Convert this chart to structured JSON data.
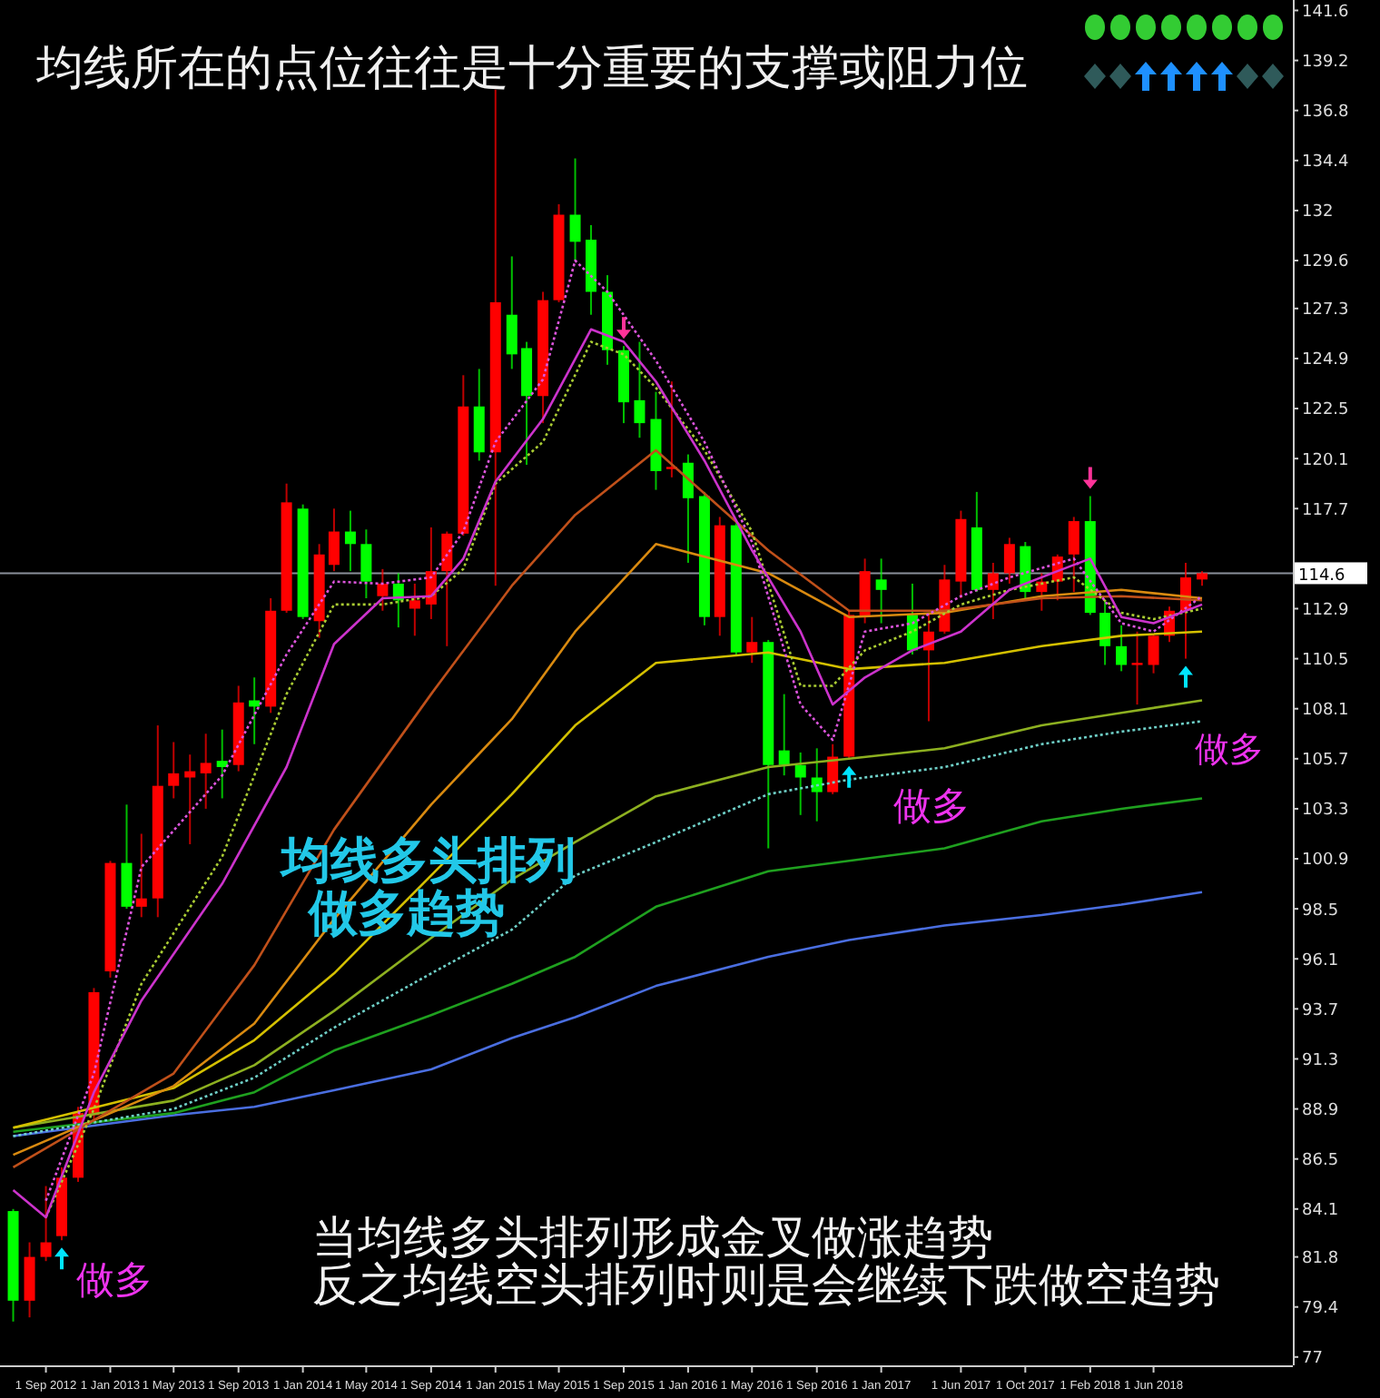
{
  "chart_data": {
    "type": "candlestick",
    "title": "均线所在的点位往往是十分重要的支撑或阻力位",
    "x": [
      "2012-07",
      "2012-08",
      "2012-09",
      "2012-10",
      "2012-11",
      "2012-12",
      "2013-01",
      "2013-02",
      "2013-03",
      "2013-04",
      "2013-05",
      "2013-06",
      "2013-07",
      "2013-08",
      "2013-09",
      "2013-10",
      "2013-11",
      "2013-12",
      "2014-01",
      "2014-02",
      "2014-03",
      "2014-04",
      "2014-05",
      "2014-06",
      "2014-07",
      "2014-08",
      "2014-09",
      "2014-10",
      "2014-11",
      "2014-12",
      "2015-01",
      "2015-02",
      "2015-03",
      "2015-04",
      "2015-05",
      "2015-06",
      "2015-07",
      "2015-08",
      "2015-09",
      "2015-10",
      "2015-11",
      "2015-12",
      "2016-01",
      "2016-02",
      "2016-03",
      "2016-04",
      "2016-05",
      "2016-06",
      "2016-07",
      "2016-08",
      "2016-09",
      "2016-10",
      "2016-11",
      "2016-12",
      "2017-01",
      "2017-03",
      "2017-04",
      "2017-05",
      "2017-06",
      "2017-07",
      "2017-08",
      "2017-09",
      "2017-10",
      "2017-11",
      "2017-12",
      "2018-01",
      "2018-02",
      "2018-03",
      "2018-04",
      "2018-05",
      "2018-06",
      "2018-07",
      "2018-08",
      "2018-09"
    ],
    "ohlc": [
      [
        84.0,
        84.1,
        78.7,
        79.7
      ],
      [
        79.7,
        82.5,
        78.9,
        81.8
      ],
      [
        81.8,
        85.2,
        81.6,
        82.5
      ],
      [
        82.8,
        86.1,
        82.6,
        85.6
      ],
      [
        85.6,
        89.0,
        85.4,
        88.7
      ],
      [
        88.6,
        94.7,
        88.3,
        94.5
      ],
      [
        95.5,
        100.8,
        95.2,
        100.7
      ],
      [
        100.7,
        103.5,
        98.5,
        98.6
      ],
      [
        98.6,
        102.1,
        98.1,
        99.0
      ],
      [
        99.0,
        107.3,
        98.1,
        104.4
      ],
      [
        104.4,
        106.5,
        103.8,
        105.0
      ],
      [
        104.8,
        105.9,
        101.6,
        105.1
      ],
      [
        105.0,
        106.9,
        103.3,
        105.5
      ],
      [
        105.6,
        107.1,
        103.8,
        105.3
      ],
      [
        105.4,
        109.2,
        105.1,
        108.4
      ],
      [
        108.5,
        109.6,
        106.4,
        108.2
      ],
      [
        108.2,
        113.4,
        107.9,
        112.8
      ],
      [
        112.8,
        118.9,
        112.7,
        118.0
      ],
      [
        117.7,
        117.9,
        112.4,
        112.5
      ],
      [
        112.3,
        116.0,
        111.5,
        115.5
      ],
      [
        115.0,
        117.7,
        114.7,
        116.6
      ],
      [
        116.6,
        117.6,
        114.7,
        116.0
      ],
      [
        116.0,
        116.7,
        113.4,
        114.2
      ],
      [
        113.5,
        114.8,
        112.8,
        114.1
      ],
      [
        114.1,
        114.6,
        112.0,
        113.3
      ],
      [
        112.9,
        114.1,
        111.6,
        113.3
      ],
      [
        113.1,
        116.8,
        112.4,
        114.7
      ],
      [
        114.7,
        116.6,
        111.1,
        116.5
      ],
      [
        116.5,
        124.1,
        116.4,
        122.6
      ],
      [
        122.6,
        124.4,
        120.0,
        120.4
      ],
      [
        120.4,
        137.8,
        114.0,
        127.6
      ],
      [
        127.0,
        129.8,
        124.4,
        125.1
      ],
      [
        125.4,
        125.7,
        119.8,
        123.1
      ],
      [
        123.1,
        128.1,
        121.8,
        127.7
      ],
      [
        127.7,
        132.3,
        127.6,
        131.8
      ],
      [
        131.8,
        134.5,
        129.6,
        130.5
      ],
      [
        130.6,
        131.3,
        127.0,
        128.1
      ],
      [
        128.1,
        128.9,
        124.6,
        125.3
      ],
      [
        125.3,
        125.5,
        121.8,
        122.8
      ],
      [
        122.9,
        125.7,
        121.1,
        121.8
      ],
      [
        122.0,
        123.3,
        118.6,
        119.5
      ],
      [
        119.6,
        123.8,
        119.2,
        119.7
      ],
      [
        119.9,
        120.3,
        115.1,
        118.2
      ],
      [
        118.3,
        118.5,
        112.1,
        112.5
      ],
      [
        112.5,
        117.3,
        111.6,
        116.9
      ],
      [
        116.9,
        117.0,
        110.7,
        110.8
      ],
      [
        110.8,
        112.5,
        110.3,
        111.3
      ],
      [
        111.3,
        111.4,
        101.4,
        105.4
      ],
      [
        106.1,
        108.8,
        104.9,
        105.4
      ],
      [
        105.4,
        106.0,
        103.0,
        104.8
      ],
      [
        104.8,
        106.2,
        102.7,
        104.1
      ],
      [
        104.1,
        106.4,
        104.0,
        105.8
      ],
      [
        105.8,
        112.8,
        105.7,
        112.6
      ],
      [
        112.5,
        115.3,
        112.2,
        114.7
      ],
      [
        114.3,
        115.3,
        112.2,
        113.8
      ],
      [
        112.6,
        114.1,
        110.7,
        110.9
      ],
      [
        110.9,
        112.7,
        107.5,
        111.8
      ],
      [
        111.8,
        115.0,
        111.7,
        114.3
      ],
      [
        114.2,
        117.6,
        113.4,
        117.2
      ],
      [
        116.8,
        118.5,
        113.7,
        113.8
      ],
      [
        113.8,
        115.1,
        112.4,
        114.6
      ],
      [
        114.6,
        116.3,
        114.1,
        116.0
      ],
      [
        115.9,
        116.1,
        113.3,
        113.7
      ],
      [
        113.7,
        114.6,
        112.8,
        114.2
      ],
      [
        114.2,
        115.5,
        113.3,
        115.4
      ],
      [
        115.5,
        117.3,
        113.7,
        117.1
      ],
      [
        117.1,
        118.3,
        112.6,
        112.7
      ],
      [
        112.7,
        113.3,
        110.2,
        111.1
      ],
      [
        111.1,
        112.1,
        109.9,
        110.2
      ],
      [
        110.2,
        111.8,
        108.3,
        110.3
      ],
      [
        110.2,
        111.7,
        109.8,
        111.6
      ],
      [
        111.6,
        113.0,
        111.3,
        112.8
      ],
      [
        112.8,
        115.1,
        110.5,
        114.4
      ],
      [
        114.3,
        114.7,
        114.0,
        114.6
      ]
    ],
    "colors": [
      "#00ff00",
      "#ff0000",
      "#ff0000",
      "#ff0000",
      "#ff0000",
      "#ff0000",
      "#ff0000",
      "#00ff00",
      "#ff0000",
      "#ff0000",
      "#ff0000",
      "#ff0000",
      "#ff0000",
      "#00ff00",
      "#ff0000",
      "#00ff00",
      "#ff0000",
      "#ff0000",
      "#00ff00",
      "#ff0000",
      "#ff0000",
      "#00ff00",
      "#00ff00",
      "#ff0000",
      "#00ff00",
      "#ff0000",
      "#ff0000",
      "#ff0000",
      "#ff0000",
      "#00ff00",
      "#ff0000",
      "#00ff00",
      "#00ff00",
      "#ff0000",
      "#ff0000",
      "#00ff00",
      "#00ff00",
      "#00ff00",
      "#00ff00",
      "#00ff00",
      "#00ff00",
      "#ff0000",
      "#00ff00",
      "#00ff00",
      "#ff0000",
      "#00ff00",
      "#ff0000",
      "#00ff00",
      "#00ff00",
      "#00ff00",
      "#00ff00",
      "#ff0000",
      "#ff0000",
      "#ff0000",
      "#00ff00",
      "#00ff00",
      "#ff0000",
      "#ff0000",
      "#ff0000",
      "#00ff00",
      "#ff0000",
      "#ff0000",
      "#00ff00",
      "#ff0000",
      "#ff0000",
      "#ff0000",
      "#00ff00",
      "#00ff00",
      "#00ff00",
      "#ff0000",
      "#ff0000",
      "#ff0000",
      "#ff0000",
      "#ff0000"
    ],
    "series": [
      {
        "type": "line",
        "color": "#4a6ee0",
        "line_style": "solid",
        "x": [
          "2012-07",
          "2013-05",
          "2013-10",
          "2014-03",
          "2014-09",
          "2015-02",
          "2015-06",
          "2015-11",
          "2016-06",
          "2016-11",
          "2017-05",
          "2017-11",
          "2018-04",
          "2018-09"
        ],
        "values": [
          87.6,
          88.6,
          89.0,
          89.8,
          90.8,
          92.3,
          93.3,
          94.8,
          96.2,
          97.0,
          97.7,
          98.2,
          98.7,
          99.3
        ]
      },
      {
        "type": "line",
        "color": "#1fa01f",
        "line_style": "solid",
        "x": [
          "2012-07",
          "2013-05",
          "2013-10",
          "2014-03",
          "2014-09",
          "2015-02",
          "2015-06",
          "2015-11",
          "2016-06",
          "2016-11",
          "2017-05",
          "2017-11",
          "2018-04",
          "2018-09"
        ],
        "values": [
          87.8,
          88.7,
          89.7,
          91.7,
          93.4,
          94.9,
          96.2,
          98.6,
          100.3,
          100.8,
          101.4,
          102.7,
          103.3,
          103.8
        ]
      },
      {
        "type": "line",
        "color": "#6fd0c8",
        "line_style": "dotted",
        "x": [
          "2012-07",
          "2013-05",
          "2013-10",
          "2014-03",
          "2014-09",
          "2015-02",
          "2015-06",
          "2015-11",
          "2016-06",
          "2016-11",
          "2017-05",
          "2017-11",
          "2018-04",
          "2018-09"
        ],
        "values": [
          87.6,
          88.9,
          90.4,
          92.8,
          95.4,
          97.5,
          100.1,
          101.7,
          104.0,
          104.7,
          105.3,
          106.4,
          107.0,
          107.5
        ]
      },
      {
        "type": "line",
        "color": "#8db020",
        "line_style": "solid",
        "x": [
          "2012-07",
          "2013-05",
          "2013-10",
          "2014-03",
          "2014-09",
          "2015-02",
          "2015-06",
          "2015-11",
          "2016-06",
          "2016-11",
          "2017-05",
          "2017-11",
          "2018-04",
          "2018-09"
        ],
        "values": [
          88.0,
          89.3,
          91.0,
          93.6,
          97.1,
          99.9,
          101.7,
          103.9,
          105.3,
          105.7,
          106.2,
          107.3,
          107.9,
          108.5
        ]
      },
      {
        "type": "line",
        "color": "#d4c000",
        "line_style": "solid",
        "x": [
          "2012-07",
          "2013-05",
          "2013-10",
          "2014-03",
          "2014-09",
          "2015-02",
          "2015-06",
          "2015-11",
          "2016-06",
          "2016-11",
          "2017-05",
          "2017-11",
          "2018-04",
          "2018-09"
        ],
        "values": [
          88.0,
          89.9,
          92.2,
          95.4,
          100.1,
          104.0,
          107.3,
          110.3,
          110.8,
          110.0,
          110.3,
          111.1,
          111.6,
          111.8
        ]
      },
      {
        "type": "line",
        "color": "#d98a10",
        "line_style": "solid",
        "x": [
          "2012-07",
          "2013-05",
          "2013-10",
          "2014-03",
          "2014-09",
          "2015-02",
          "2015-06",
          "2015-11",
          "2016-06",
          "2016-11",
          "2017-05",
          "2017-11",
          "2018-04",
          "2018-09"
        ],
        "values": [
          86.7,
          90.0,
          93.0,
          98.0,
          103.5,
          107.6,
          111.8,
          116.0,
          114.6,
          112.5,
          112.7,
          113.5,
          113.8,
          113.4
        ]
      },
      {
        "type": "line",
        "color": "#c0501a",
        "line_style": "solid",
        "x": [
          "2012-07",
          "2013-05",
          "2013-10",
          "2014-03",
          "2014-09",
          "2015-02",
          "2015-06",
          "2015-11",
          "2016-06",
          "2016-11",
          "2017-05",
          "2017-11",
          "2018-04",
          "2018-09"
        ],
        "values": [
          86.1,
          90.6,
          95.8,
          102.3,
          108.8,
          114.0,
          117.4,
          120.5,
          115.7,
          112.8,
          112.8,
          113.4,
          113.5,
          113.3
        ]
      },
      {
        "type": "line",
        "color": "#aacc33",
        "line_style": "dotted",
        "x": [
          "2012-09",
          "2012-12",
          "2013-03",
          "2013-08",
          "2013-12",
          "2014-03",
          "2014-06",
          "2014-09",
          "2014-11",
          "2015-01",
          "2015-04",
          "2015-07",
          "2015-09",
          "2015-11",
          "2016-02",
          "2016-05",
          "2016-08",
          "2016-10",
          "2016-12",
          "2017-03",
          "2017-06",
          "2017-09",
          "2018-01",
          "2018-04",
          "2018-06",
          "2018-09"
        ],
        "values": [
          83.7,
          88.9,
          94.9,
          101.0,
          108.8,
          113.1,
          113.1,
          113.5,
          114.8,
          118.9,
          120.9,
          125.7,
          125.1,
          123.5,
          120.5,
          116.6,
          109.2,
          109.2,
          110.9,
          111.8,
          113.1,
          113.8,
          114.4,
          112.7,
          112.4,
          112.9
        ]
      },
      {
        "type": "line",
        "color": "#dd55dd",
        "line_style": "dotted",
        "x": [
          "2012-09",
          "2012-12",
          "2013-03",
          "2013-08",
          "2013-12",
          "2014-03",
          "2014-06",
          "2014-09",
          "2014-11",
          "2015-01",
          "2015-04",
          "2015-06",
          "2015-08",
          "2015-11",
          "2016-02",
          "2016-05",
          "2016-08",
          "2016-10",
          "2016-12",
          "2017-03",
          "2017-06",
          "2017-09",
          "2018-01",
          "2018-04",
          "2018-06",
          "2018-09"
        ],
        "values": [
          84.5,
          90.6,
          100.5,
          104.9,
          110.7,
          114.2,
          114.1,
          114.4,
          116.6,
          120.9,
          123.9,
          129.6,
          128.1,
          124.8,
          120.9,
          116.1,
          108.3,
          106.6,
          111.8,
          112.2,
          113.5,
          114.4,
          115.3,
          112.2,
          111.8,
          113.5
        ]
      },
      {
        "type": "line",
        "color": "#cc33cc",
        "line_style": "solid",
        "x": [
          "2012-07",
          "2012-09",
          "2012-12",
          "2013-03",
          "2013-08",
          "2013-12",
          "2014-03",
          "2014-06",
          "2014-09",
          "2014-11",
          "2015-01",
          "2015-04",
          "2015-07",
          "2015-09",
          "2015-11",
          "2016-02",
          "2016-05",
          "2016-08",
          "2016-10",
          "2016-12",
          "2017-03",
          "2017-06",
          "2017-09",
          "2017-12",
          "2018-02",
          "2018-04",
          "2018-06",
          "2018-09"
        ],
        "values": [
          85.0,
          83.7,
          89.7,
          94.1,
          99.7,
          105.3,
          111.2,
          113.4,
          113.5,
          115.3,
          119.0,
          122.0,
          126.3,
          125.7,
          123.8,
          120.0,
          115.7,
          111.8,
          108.3,
          109.6,
          110.9,
          111.8,
          113.8,
          114.7,
          115.3,
          112.5,
          112.2,
          113.1
        ]
      }
    ],
    "xlim": [
      "2012-06-06",
      "2019-02-20"
    ],
    "xticks": [
      {
        "value": "2012-09",
        "label": "1 Sep 2012"
      },
      {
        "value": "2013-01",
        "label": "1 Jan 2013"
      },
      {
        "value": "2013-05",
        "label": "1 May 2013"
      },
      {
        "value": "2013-09",
        "label": "1 Sep 2013"
      },
      {
        "value": "2014-01",
        "label": "1 Jan 2014"
      },
      {
        "value": "2014-05",
        "label": "1 May 2014"
      },
      {
        "value": "2014-09",
        "label": "1 Sep 2014"
      },
      {
        "value": "2015-01",
        "label": "1 Jan 2015"
      },
      {
        "value": "2015-05",
        "label": "1 May 2015"
      },
      {
        "value": "2015-09",
        "label": "1 Sep 2015"
      },
      {
        "value": "2016-01",
        "label": "1 Jan 2016"
      },
      {
        "value": "2016-05",
        "label": "1 May 2016"
      },
      {
        "value": "2016-09",
        "label": "1 Sep 2016"
      },
      {
        "value": "2017-01",
        "label": "1 Jan 2017"
      },
      {
        "value": "2017-06",
        "label": "1 Jun 2017"
      },
      {
        "value": "2017-10",
        "label": "1 Oct 2017"
      },
      {
        "value": "2018-02",
        "label": "1 Feb 2018"
      },
      {
        "value": "2018-06",
        "label": "1 Jun 2018"
      }
    ],
    "ylim": [
      76.6,
      142.1
    ],
    "yticks": [
      77.0,
      79.4,
      81.8,
      84.1,
      86.5,
      88.9,
      91.3,
      93.7,
      96.1,
      98.5,
      100.9,
      103.3,
      105.7,
      108.1,
      110.5,
      112.9,
      117.7,
      120.1,
      122.5,
      124.9,
      127.3,
      129.6,
      132.0,
      134.4,
      136.8,
      139.2,
      141.6
    ],
    "ref_lines": [
      {
        "axis": "y",
        "value": 114.6,
        "label": "114.6",
        "color": "#8a8f9a"
      }
    ],
    "annotations": [
      "均线多头排列",
      "做多趋势",
      "当均线多头排列形成金叉做涨趋势",
      "反之均线空头排列时则是会继续下跌做空趋势",
      "做多",
      "做多",
      "做多"
    ]
  }
}
